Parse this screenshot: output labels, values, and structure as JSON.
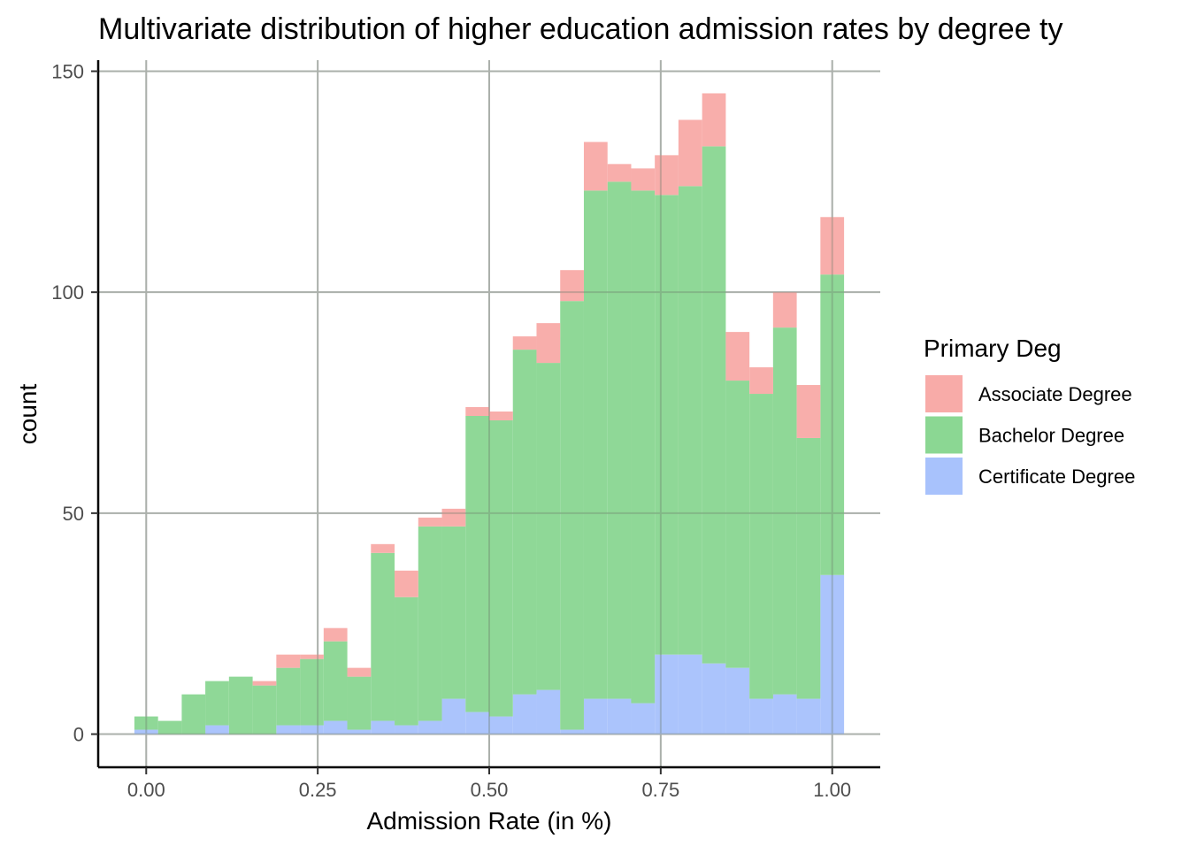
{
  "chart_data": {
    "type": "bar",
    "stacked": true,
    "title": "Multivariate distribution of higher education admission rates by degree ty",
    "xlabel": "Admission Rate (in %)",
    "ylabel": "count",
    "xlim": [
      -0.07,
      1.07
    ],
    "ylim": [
      -7.5,
      152.5
    ],
    "xticks": [
      0.0,
      0.25,
      0.5,
      0.75,
      1.0
    ],
    "xtick_labels": [
      "0.00",
      "0.25",
      "0.50",
      "0.75",
      "1.00"
    ],
    "yticks": [
      0,
      50,
      100,
      150
    ],
    "ytick_labels": [
      "0",
      "50",
      "100",
      "150"
    ],
    "grid": true,
    "legend_position": "right",
    "legend_title": "Primary Deg",
    "bin_width": 0.0345,
    "x": [
      0.0,
      0.0345,
      0.069,
      0.1034,
      0.1379,
      0.1724,
      0.2069,
      0.2414,
      0.2759,
      0.3103,
      0.3448,
      0.3793,
      0.4138,
      0.4483,
      0.4828,
      0.5172,
      0.5517,
      0.5862,
      0.6207,
      0.6552,
      0.6897,
      0.7241,
      0.7586,
      0.7931,
      0.8276,
      0.8621,
      0.8966,
      0.931,
      0.9655,
      1.0
    ],
    "series": [
      {
        "name": "Certificate Degree",
        "color": "#a8c2fc",
        "values": [
          1,
          0,
          0,
          2,
          0,
          0,
          2,
          2,
          3,
          1,
          3,
          2,
          3,
          8,
          5,
          4,
          9,
          10,
          1,
          8,
          8,
          7,
          18,
          18,
          16,
          15,
          8,
          9,
          8,
          36
        ]
      },
      {
        "name": "Bachelor Degree",
        "color": "#8bd793",
        "values": [
          3,
          3,
          9,
          10,
          13,
          11,
          13,
          15,
          18,
          12,
          38,
          29,
          44,
          39,
          67,
          67,
          78,
          74,
          97,
          115,
          117,
          116,
          104,
          106,
          117,
          65,
          69,
          83,
          59,
          68
        ]
      },
      {
        "name": "Associate Degree",
        "color": "#f8aba8",
        "values": [
          0,
          0,
          0,
          0,
          0,
          1,
          3,
          1,
          3,
          2,
          2,
          6,
          2,
          4,
          2,
          2,
          3,
          9,
          7,
          11,
          4,
          5,
          9,
          15,
          12,
          11,
          6,
          8,
          12,
          13
        ]
      }
    ]
  }
}
